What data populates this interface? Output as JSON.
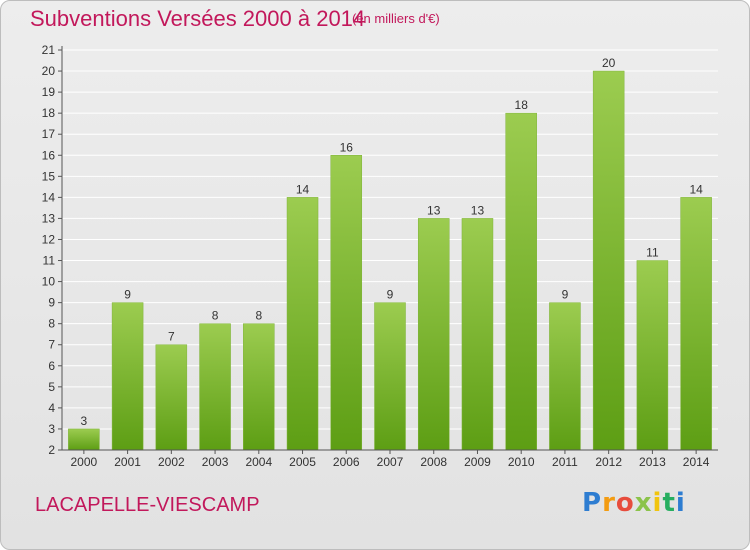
{
  "header": {
    "title": "Subventions Versées 2000 à 2014",
    "subtitle": "(en milliers d'€)"
  },
  "footer": {
    "commune": "LACAPELLE-VIESCAMP",
    "logo_text": "Proxiti"
  },
  "colors": {
    "bar_top": "#9ccc50",
    "bar_bottom": "#5d9e14",
    "title": "#c2185b",
    "grid": "#ffffff"
  },
  "chart_data": {
    "type": "bar",
    "title": "Subventions Versées 2000 à 2014",
    "subtitle": "(en milliers d'€)",
    "categories": [
      "2000",
      "2001",
      "2002",
      "2003",
      "2004",
      "2005",
      "2006",
      "2007",
      "2008",
      "2009",
      "2010",
      "2011",
      "2012",
      "2013",
      "2014"
    ],
    "values": [
      3,
      9,
      7,
      8,
      8,
      14,
      16,
      9,
      13,
      13,
      18,
      9,
      20,
      11,
      14
    ],
    "ylim": [
      2,
      21
    ],
    "yticks": [
      2,
      3,
      4,
      5,
      6,
      7,
      8,
      9,
      10,
      11,
      12,
      13,
      14,
      15,
      16,
      17,
      18,
      19,
      20,
      21
    ],
    "grid": true,
    "data_labels": true
  }
}
